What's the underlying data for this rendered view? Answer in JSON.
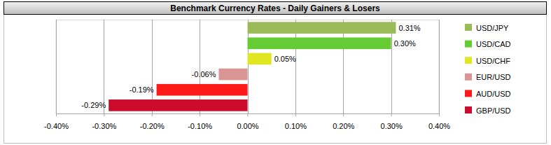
{
  "chart_data": {
    "type": "bar",
    "title": "Benchmark Currency Rates - Daily Gainers & Losers",
    "orientation": "horizontal",
    "categories": [
      "USD/JPY",
      "USD/CAD",
      "USD/CHF",
      "EUR/USD",
      "AUD/USD",
      "GBP/USD"
    ],
    "values": [
      0.31,
      0.3,
      0.05,
      -0.06,
      -0.19,
      -0.29
    ],
    "value_labels": [
      "0.31%",
      "0.30%",
      "0.05%",
      "-0.06%",
      "-0.19%",
      "-0.29%"
    ],
    "colors": [
      "#9bbb59",
      "#66cc33",
      "#e0e622",
      "#d99694",
      "#ff1a1a",
      "#cc0a2a"
    ],
    "xlim": [
      -0.4,
      0.4
    ],
    "xticks": [
      {
        "value": -0.4,
        "label": "-0.40%"
      },
      {
        "value": -0.3,
        "label": "-0.30%"
      },
      {
        "value": -0.2,
        "label": "-0.20%"
      },
      {
        "value": -0.1,
        "label": "-0.10%"
      },
      {
        "value": 0,
        "label": "0.00%"
      },
      {
        "value": 0.1,
        "label": "0.10%"
      },
      {
        "value": 0.2,
        "label": "0.20%"
      },
      {
        "value": 0.3,
        "label": "0.30%"
      },
      {
        "value": 0.4,
        "label": "0.40%"
      }
    ],
    "grid": true,
    "data_labels": true,
    "tick_labels": "x",
    "legend": "right"
  }
}
